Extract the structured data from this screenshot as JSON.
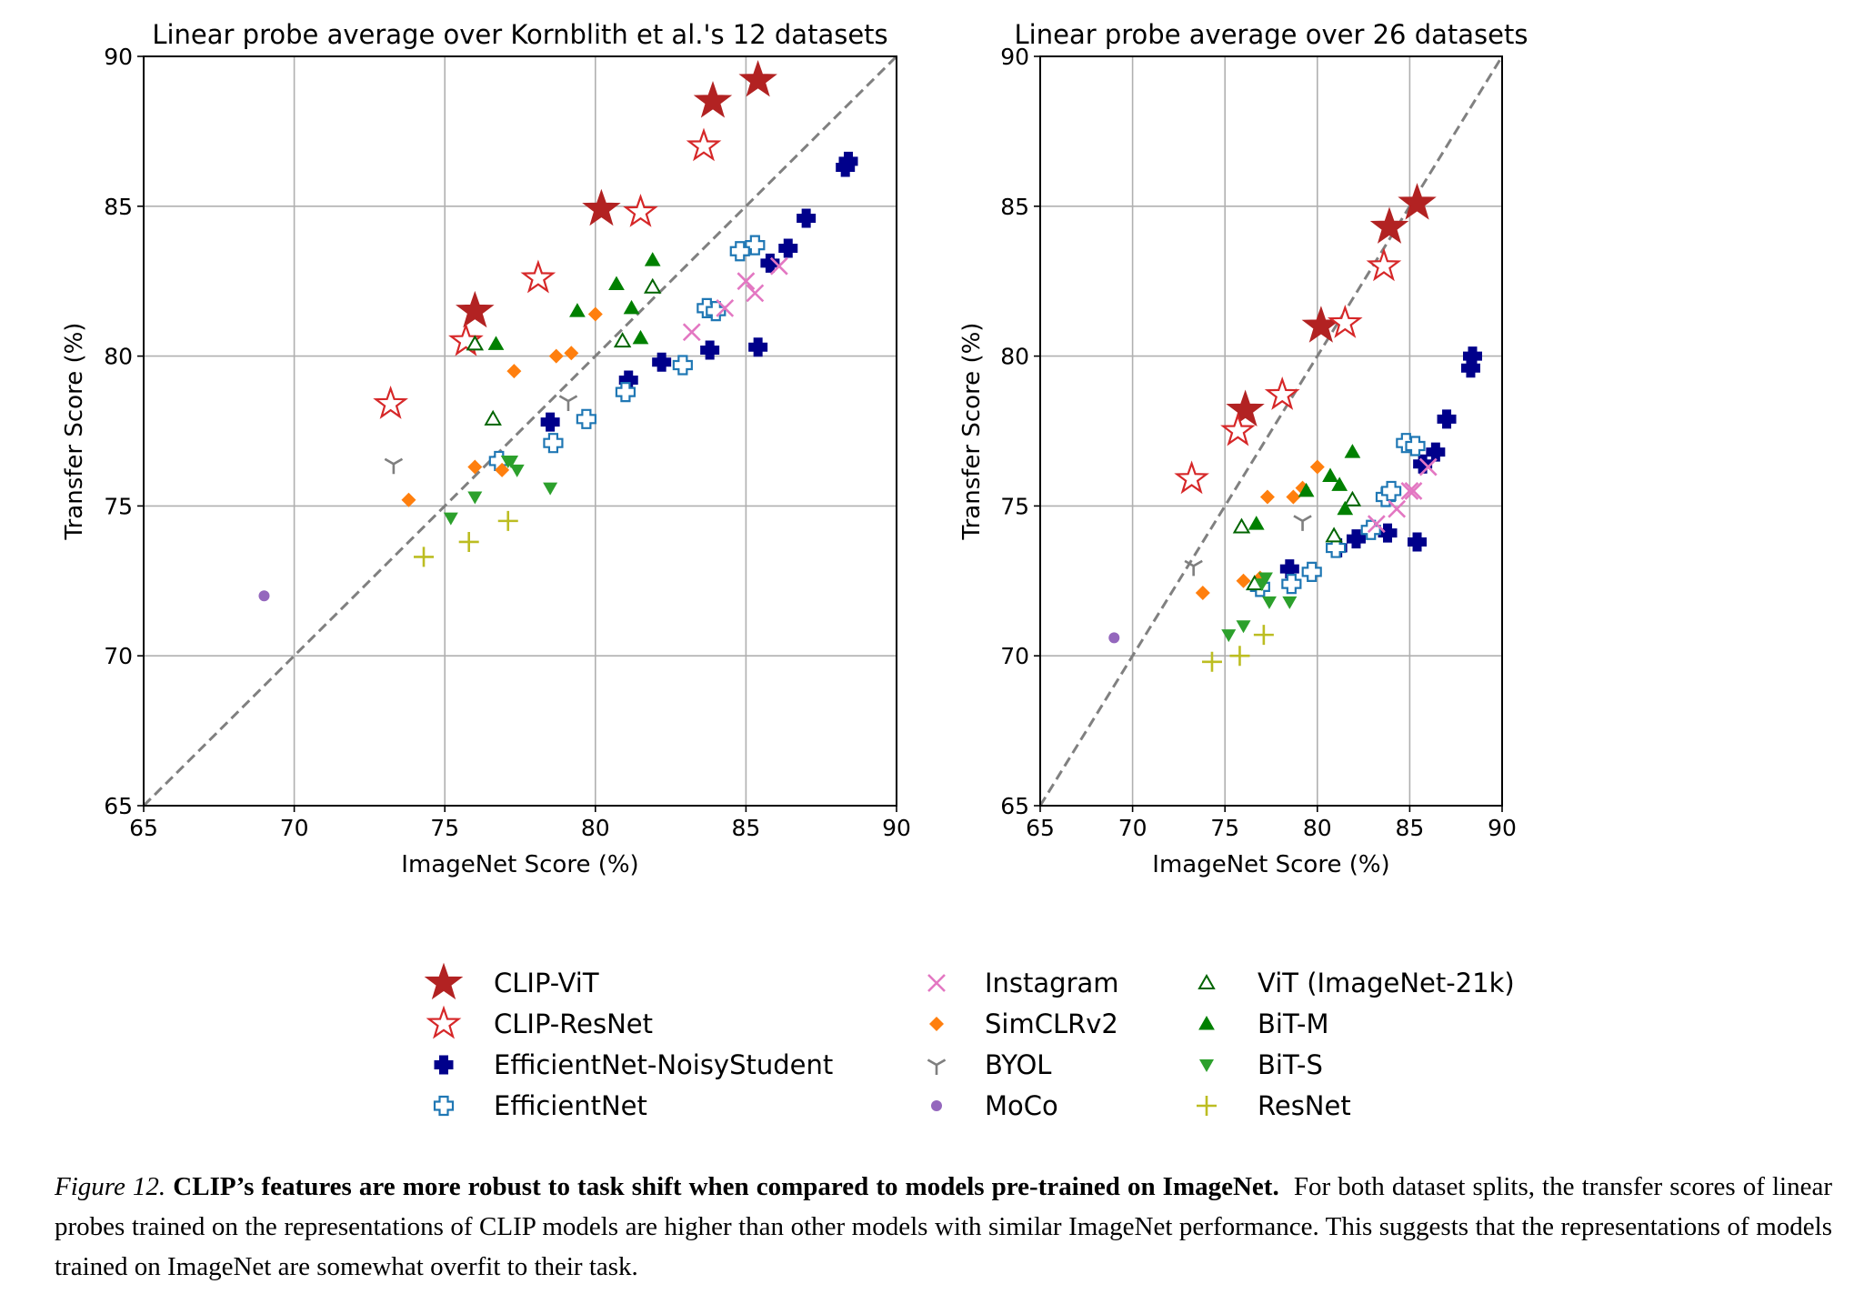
{
  "chart_data": [
    {
      "type": "scatter",
      "title": "Linear probe average over Kornblith et al.'s 12 datasets",
      "xlabel": "ImageNet Score (%)",
      "ylabel": "Transfer Score (%)",
      "xlim": [
        65,
        90
      ],
      "ylim": [
        65,
        90
      ],
      "xticks": [
        65,
        70,
        75,
        80,
        85,
        90
      ],
      "yticks": [
        65,
        70,
        75,
        80,
        85,
        90
      ],
      "grid": true,
      "reference_line": "y = x (dashed)",
      "series": [
        {
          "name": "CLIP-ViT",
          "x": [
            85.4,
            83.9,
            80.2,
            76.0
          ],
          "y": [
            89.2,
            88.5,
            84.9,
            81.5
          ]
        },
        {
          "name": "CLIP-ResNet",
          "x": [
            83.6,
            81.5,
            78.1,
            75.7,
            73.2
          ],
          "y": [
            87.0,
            84.8,
            82.6,
            80.5,
            78.4
          ]
        },
        {
          "name": "EfficientNet-NoisyStudent",
          "x": [
            88.4,
            88.3,
            87.0,
            86.4,
            85.8,
            85.4,
            83.8,
            82.2,
            81.1,
            78.5
          ],
          "y": [
            86.5,
            86.3,
            84.6,
            83.6,
            83.1,
            80.3,
            80.2,
            79.8,
            79.2,
            77.8
          ]
        },
        {
          "name": "EfficientNet",
          "x": [
            85.3,
            84.8,
            83.7,
            84.0,
            82.9,
            81.0,
            79.7,
            78.6,
            76.8
          ],
          "y": [
            83.7,
            83.5,
            81.6,
            81.5,
            79.7,
            78.8,
            77.9,
            77.1,
            76.5
          ]
        },
        {
          "name": "Instagram",
          "x": [
            86.1,
            85.0,
            85.3,
            84.3,
            83.2
          ],
          "y": [
            83.0,
            82.5,
            82.1,
            81.6,
            80.8
          ]
        },
        {
          "name": "SimCLRv2",
          "x": [
            80.0,
            79.2,
            78.7,
            77.3,
            76.0,
            76.9,
            73.8
          ],
          "y": [
            81.4,
            80.1,
            80.0,
            79.5,
            76.3,
            76.2,
            75.2
          ]
        },
        {
          "name": "BYOL",
          "x": [
            79.1,
            73.3
          ],
          "y": [
            78.5,
            76.4
          ]
        },
        {
          "name": "MoCo",
          "x": [
            69.0
          ],
          "y": [
            72.0
          ]
        },
        {
          "name": "ViT (ImageNet-21k)",
          "x": [
            81.9,
            80.9,
            76.6,
            76.0
          ],
          "y": [
            82.3,
            80.5,
            77.9,
            80.4
          ]
        },
        {
          "name": "BiT-M",
          "x": [
            81.9,
            80.7,
            81.2,
            79.4,
            81.5,
            76.7
          ],
          "y": [
            83.2,
            82.4,
            81.6,
            81.5,
            80.6,
            80.4
          ]
        },
        {
          "name": "BiT-S",
          "x": [
            77.1,
            77.2,
            77.4,
            78.5,
            76.0,
            75.2
          ],
          "y": [
            76.5,
            76.5,
            76.2,
            75.6,
            75.3,
            74.6
          ]
        },
        {
          "name": "ResNet",
          "x": [
            77.1,
            75.8,
            74.3
          ],
          "y": [
            74.5,
            73.8,
            73.3
          ]
        }
      ]
    },
    {
      "type": "scatter",
      "title": "Linear probe average over 26 datasets",
      "xlabel": "ImageNet Score (%)",
      "ylabel": "Transfer Score (%)",
      "xlim": [
        65,
        90
      ],
      "ylim": [
        65,
        90
      ],
      "xticks": [
        65,
        70,
        75,
        80,
        85,
        90
      ],
      "yticks": [
        65,
        70,
        75,
        80,
        85,
        90
      ],
      "grid": true,
      "reference_line": "y = x (dashed)",
      "series": [
        {
          "name": "CLIP-ViT",
          "x": [
            85.4,
            83.9,
            80.2,
            76.1
          ],
          "y": [
            85.1,
            84.3,
            81.0,
            78.2
          ]
        },
        {
          "name": "CLIP-ResNet",
          "x": [
            83.6,
            81.5,
            78.1,
            75.7,
            73.2
          ],
          "y": [
            83.0,
            81.1,
            78.7,
            77.5,
            75.9
          ]
        },
        {
          "name": "EfficientNet-NoisyStudent",
          "x": [
            88.4,
            88.3,
            87.0,
            86.4,
            85.7,
            85.4,
            83.8,
            82.1,
            81.1,
            78.5
          ],
          "y": [
            80.0,
            79.6,
            77.9,
            76.8,
            76.4,
            73.8,
            74.1,
            73.9,
            73.6,
            72.9
          ]
        },
        {
          "name": "EfficientNet",
          "x": [
            84.8,
            85.3,
            83.7,
            84.0,
            82.9,
            81.0,
            79.7,
            78.6,
            76.9
          ],
          "y": [
            77.1,
            77.0,
            75.3,
            75.5,
            74.2,
            73.6,
            72.8,
            72.4,
            72.3
          ]
        },
        {
          "name": "Instagram",
          "x": [
            86.0,
            85.0,
            85.2,
            84.3,
            83.2
          ],
          "y": [
            76.3,
            75.5,
            75.5,
            74.9,
            74.4
          ]
        },
        {
          "name": "SimCLRv2",
          "x": [
            80.0,
            79.2,
            78.7,
            77.3,
            76.9,
            76.0,
            73.8
          ],
          "y": [
            76.3,
            75.6,
            75.3,
            75.3,
            72.6,
            72.5,
            72.1
          ]
        },
        {
          "name": "BYOL",
          "x": [
            79.2,
            73.3
          ],
          "y": [
            74.5,
            73.0
          ]
        },
        {
          "name": "MoCo",
          "x": [
            69.0
          ],
          "y": [
            70.6
          ]
        },
        {
          "name": "ViT (ImageNet-21k)",
          "x": [
            81.9,
            80.9,
            75.9,
            76.6
          ],
          "y": [
            75.2,
            74.0,
            74.3,
            72.4
          ]
        },
        {
          "name": "BiT-M",
          "x": [
            81.9,
            80.7,
            81.2,
            79.4,
            81.5,
            76.7
          ],
          "y": [
            76.8,
            76.0,
            75.7,
            75.5,
            74.9,
            74.4
          ]
        },
        {
          "name": "BiT-S",
          "x": [
            77.2,
            77.0,
            77.4,
            78.5,
            76.0,
            75.2
          ],
          "y": [
            72.6,
            72.4,
            71.8,
            71.8,
            71.0,
            70.7
          ]
        },
        {
          "name": "ResNet",
          "x": [
            77.1,
            75.8,
            74.3
          ],
          "y": [
            70.7,
            70.0,
            69.8
          ]
        }
      ]
    }
  ],
  "legend": {
    "placement": "bottom",
    "entries": [
      {
        "name": "CLIP-ViT",
        "marker": "star",
        "filled": true,
        "color": "#b22222"
      },
      {
        "name": "CLIP-ResNet",
        "marker": "star",
        "filled": false,
        "color": "#d62728"
      },
      {
        "name": "EfficientNet-NoisyStudent",
        "marker": "thick-plus",
        "filled": true,
        "color": "#00008b"
      },
      {
        "name": "EfficientNet",
        "marker": "thick-plus",
        "filled": false,
        "color": "#1f77b4"
      },
      {
        "name": "Instagram",
        "marker": "x",
        "filled": false,
        "color": "#e377c2"
      },
      {
        "name": "SimCLRv2",
        "marker": "diamond",
        "filled": true,
        "color": "#ff7f0e"
      },
      {
        "name": "BYOL",
        "marker": "tri-down",
        "filled": false,
        "color": "#7f7f7f"
      },
      {
        "name": "MoCo",
        "marker": "circle",
        "filled": true,
        "color": "#9467bd"
      },
      {
        "name": "ViT (ImageNet-21k)",
        "marker": "triangle-up",
        "filled": false,
        "color": "#006400"
      },
      {
        "name": "BiT-M",
        "marker": "triangle-up",
        "filled": true,
        "color": "#008000"
      },
      {
        "name": "BiT-S",
        "marker": "triangle-down",
        "filled": true,
        "color": "#2ca02c"
      },
      {
        "name": "ResNet",
        "marker": "plus",
        "filled": false,
        "color": "#bcbd22"
      }
    ]
  },
  "caption": {
    "label": "Figure 12.",
    "bold": "CLIP’s features are more robust to task shift when compared to models pre-trained on ImageNet.",
    "text": "For both dataset splits, the transfer scores of linear probes trained on the representations of CLIP models are higher than other models with similar ImageNet performance. This suggests that the representations of models trained on ImageNet are somewhat overfit to their task."
  }
}
